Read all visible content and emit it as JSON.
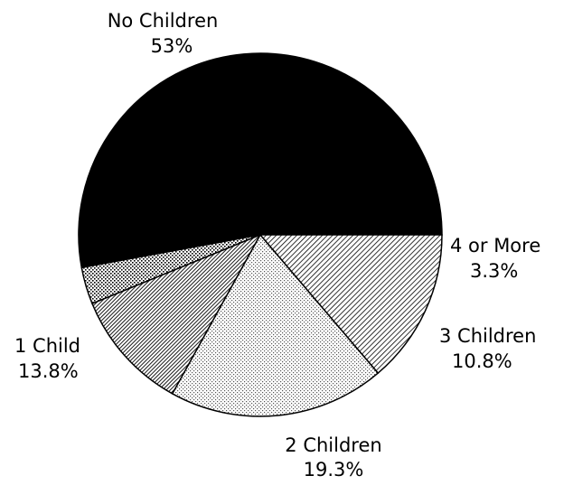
{
  "chart_data": {
    "type": "pie",
    "title": "",
    "slices": [
      {
        "label": "No Children",
        "value": 53,
        "value_label": "53%",
        "pattern": "solid-black"
      },
      {
        "label": "4 or More",
        "value": 3.3,
        "value_label": "3.3%",
        "pattern": "fine-dots"
      },
      {
        "label": "3 Children",
        "value": 10.8,
        "value_label": "10.8%",
        "pattern": "dense-diagonal-hatch"
      },
      {
        "label": "2 Children",
        "value": 19.3,
        "value_label": "19.3%",
        "pattern": "light-dots"
      },
      {
        "label": "1 Child",
        "value": 13.8,
        "value_label": "13.8%",
        "pattern": "diagonal-hatch"
      }
    ],
    "legend": "none",
    "colors": {
      "solid": "#000000",
      "background": "#ffffff"
    }
  }
}
